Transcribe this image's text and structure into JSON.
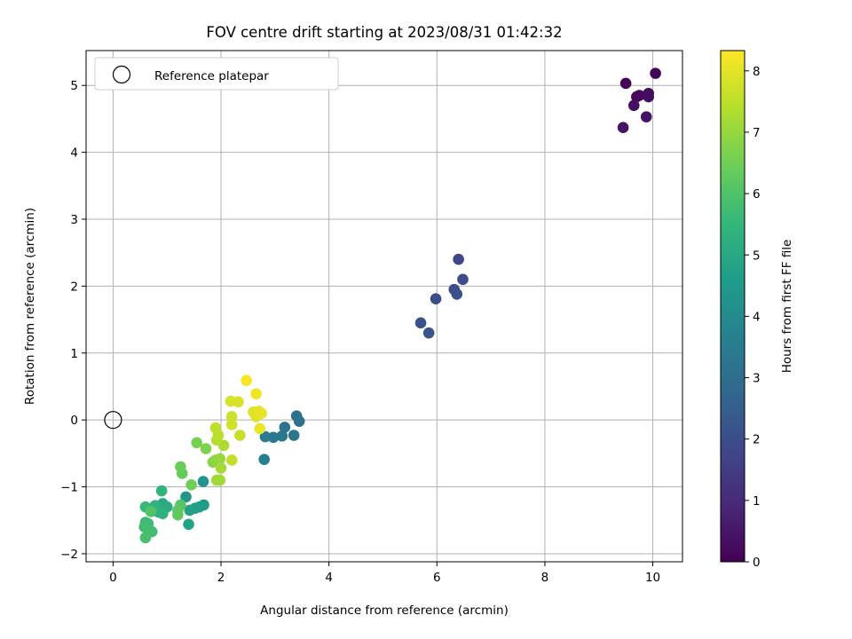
{
  "chart_data": {
    "type": "scatter",
    "title": "FOV centre drift starting at 2023/08/31 01:42:32",
    "xlabel": "Angular distance from reference (arcmin)",
    "ylabel": "Rotation from reference (arcmin)",
    "xlim": [
      -0.5,
      10.55
    ],
    "ylim": [
      -2.12,
      5.52
    ],
    "xticks": [
      0,
      2,
      4,
      6,
      8,
      10
    ],
    "yticks": [
      -2,
      -1,
      0,
      1,
      2,
      3,
      4,
      5
    ],
    "grid": true,
    "legend": {
      "position": "top-left",
      "entries": [
        "Reference platepar"
      ]
    },
    "reference_point": {
      "x": 0,
      "y": 0
    },
    "colorbar": {
      "label": "Hours from first FF file",
      "min": 0,
      "max": 8.33,
      "ticks": [
        0,
        1,
        2,
        3,
        4,
        5,
        6,
        7,
        8
      ],
      "colormap": [
        "#440154",
        "#482878",
        "#3e4989",
        "#31688e",
        "#26828e",
        "#1f9e89",
        "#35b779",
        "#6ece58",
        "#b5de2b",
        "#fde725"
      ]
    },
    "points": [
      {
        "x": 9.5,
        "y": 5.03,
        "h": 0.05
      },
      {
        "x": 10.05,
        "y": 5.18,
        "h": 0.1
      },
      {
        "x": 9.75,
        "y": 4.85,
        "h": 0.15
      },
      {
        "x": 9.7,
        "y": 4.83,
        "h": 0.2
      },
      {
        "x": 9.92,
        "y": 4.88,
        "h": 0.25
      },
      {
        "x": 9.92,
        "y": 4.83,
        "h": 0.3
      },
      {
        "x": 9.65,
        "y": 4.7,
        "h": 0.35
      },
      {
        "x": 9.88,
        "y": 4.53,
        "h": 0.4
      },
      {
        "x": 9.45,
        "y": 4.37,
        "h": 0.45
      },
      {
        "x": 6.4,
        "y": 2.4,
        "h": 1.8
      },
      {
        "x": 6.48,
        "y": 2.1,
        "h": 1.9
      },
      {
        "x": 6.32,
        "y": 1.95,
        "h": 1.95
      },
      {
        "x": 5.98,
        "y": 1.81,
        "h": 2.0
      },
      {
        "x": 6.37,
        "y": 1.88,
        "h": 2.05
      },
      {
        "x": 5.7,
        "y": 1.45,
        "h": 2.1
      },
      {
        "x": 5.85,
        "y": 1.3,
        "h": 2.2
      },
      {
        "x": 3.4,
        "y": 0.06,
        "h": 3.1
      },
      {
        "x": 3.45,
        "y": -0.02,
        "h": 3.15
      },
      {
        "x": 3.18,
        "y": -0.11,
        "h": 3.2
      },
      {
        "x": 3.35,
        "y": -0.23,
        "h": 3.25
      },
      {
        "x": 3.13,
        "y": -0.24,
        "h": 3.3
      },
      {
        "x": 2.97,
        "y": -0.26,
        "h": 3.35
      },
      {
        "x": 2.82,
        "y": -0.25,
        "h": 3.4
      },
      {
        "x": 2.8,
        "y": -0.59,
        "h": 3.6
      },
      {
        "x": 1.67,
        "y": -0.92,
        "h": 4.3
      },
      {
        "x": 1.35,
        "y": -1.15,
        "h": 4.4
      },
      {
        "x": 1.68,
        "y": -1.27,
        "h": 4.5
      },
      {
        "x": 1.6,
        "y": -1.3,
        "h": 4.6
      },
      {
        "x": 1.52,
        "y": -1.32,
        "h": 4.7
      },
      {
        "x": 1.42,
        "y": -1.35,
        "h": 4.75
      },
      {
        "x": 1.4,
        "y": -1.56,
        "h": 4.8
      },
      {
        "x": 0.92,
        "y": -1.25,
        "h": 5.0
      },
      {
        "x": 0.9,
        "y": -1.32,
        "h": 5.05
      },
      {
        "x": 1.0,
        "y": -1.3,
        "h": 5.1
      },
      {
        "x": 0.85,
        "y": -1.38,
        "h": 5.15
      },
      {
        "x": 0.78,
        "y": -1.36,
        "h": 5.2
      },
      {
        "x": 0.92,
        "y": -1.4,
        "h": 5.3
      },
      {
        "x": 0.78,
        "y": -1.28,
        "h": 5.35
      },
      {
        "x": 0.9,
        "y": -1.06,
        "h": 5.4
      },
      {
        "x": 0.6,
        "y": -1.3,
        "h": 5.6
      },
      {
        "x": 0.6,
        "y": -1.53,
        "h": 5.65
      },
      {
        "x": 0.65,
        "y": -1.55,
        "h": 5.7
      },
      {
        "x": 0.58,
        "y": -1.6,
        "h": 5.75
      },
      {
        "x": 0.72,
        "y": -1.67,
        "h": 5.8
      },
      {
        "x": 0.6,
        "y": -1.76,
        "h": 5.85
      },
      {
        "x": 0.7,
        "y": -1.37,
        "h": 6.0
      },
      {
        "x": 1.25,
        "y": -1.27,
        "h": 6.1
      },
      {
        "x": 1.2,
        "y": -1.35,
        "h": 6.2
      },
      {
        "x": 1.2,
        "y": -1.42,
        "h": 6.25
      },
      {
        "x": 1.28,
        "y": -0.8,
        "h": 6.3
      },
      {
        "x": 1.25,
        "y": -0.7,
        "h": 6.4
      },
      {
        "x": 1.45,
        "y": -0.97,
        "h": 6.5
      },
      {
        "x": 1.55,
        "y": -0.34,
        "h": 6.6
      },
      {
        "x": 1.72,
        "y": -0.43,
        "h": 6.7
      },
      {
        "x": 1.85,
        "y": -0.63,
        "h": 6.8
      },
      {
        "x": 1.9,
        "y": -0.6,
        "h": 6.9
      },
      {
        "x": 1.98,
        "y": -0.58,
        "h": 7.0
      },
      {
        "x": 1.92,
        "y": -0.9,
        "h": 7.1
      },
      {
        "x": 1.98,
        "y": -0.9,
        "h": 7.15
      },
      {
        "x": 2.0,
        "y": -0.72,
        "h": 7.2
      },
      {
        "x": 2.05,
        "y": -0.38,
        "h": 7.3
      },
      {
        "x": 1.92,
        "y": -0.3,
        "h": 7.4
      },
      {
        "x": 1.95,
        "y": -0.23,
        "h": 7.45
      },
      {
        "x": 1.9,
        "y": -0.12,
        "h": 7.5
      },
      {
        "x": 2.2,
        "y": -0.6,
        "h": 7.55
      },
      {
        "x": 2.35,
        "y": -0.23,
        "h": 7.6
      },
      {
        "x": 2.2,
        "y": 0.05,
        "h": 7.7
      },
      {
        "x": 2.2,
        "y": -0.07,
        "h": 7.75
      },
      {
        "x": 2.18,
        "y": 0.28,
        "h": 7.8
      },
      {
        "x": 2.32,
        "y": 0.27,
        "h": 7.85
      },
      {
        "x": 2.6,
        "y": 0.12,
        "h": 7.9
      },
      {
        "x": 2.65,
        "y": 0.05,
        "h": 7.95
      },
      {
        "x": 2.7,
        "y": 0.13,
        "h": 8.0
      },
      {
        "x": 2.75,
        "y": 0.1,
        "h": 8.05
      },
      {
        "x": 2.72,
        "y": -0.13,
        "h": 8.1
      },
      {
        "x": 2.65,
        "y": 0.39,
        "h": 8.15
      },
      {
        "x": 2.47,
        "y": 0.59,
        "h": 8.25
      }
    ]
  }
}
